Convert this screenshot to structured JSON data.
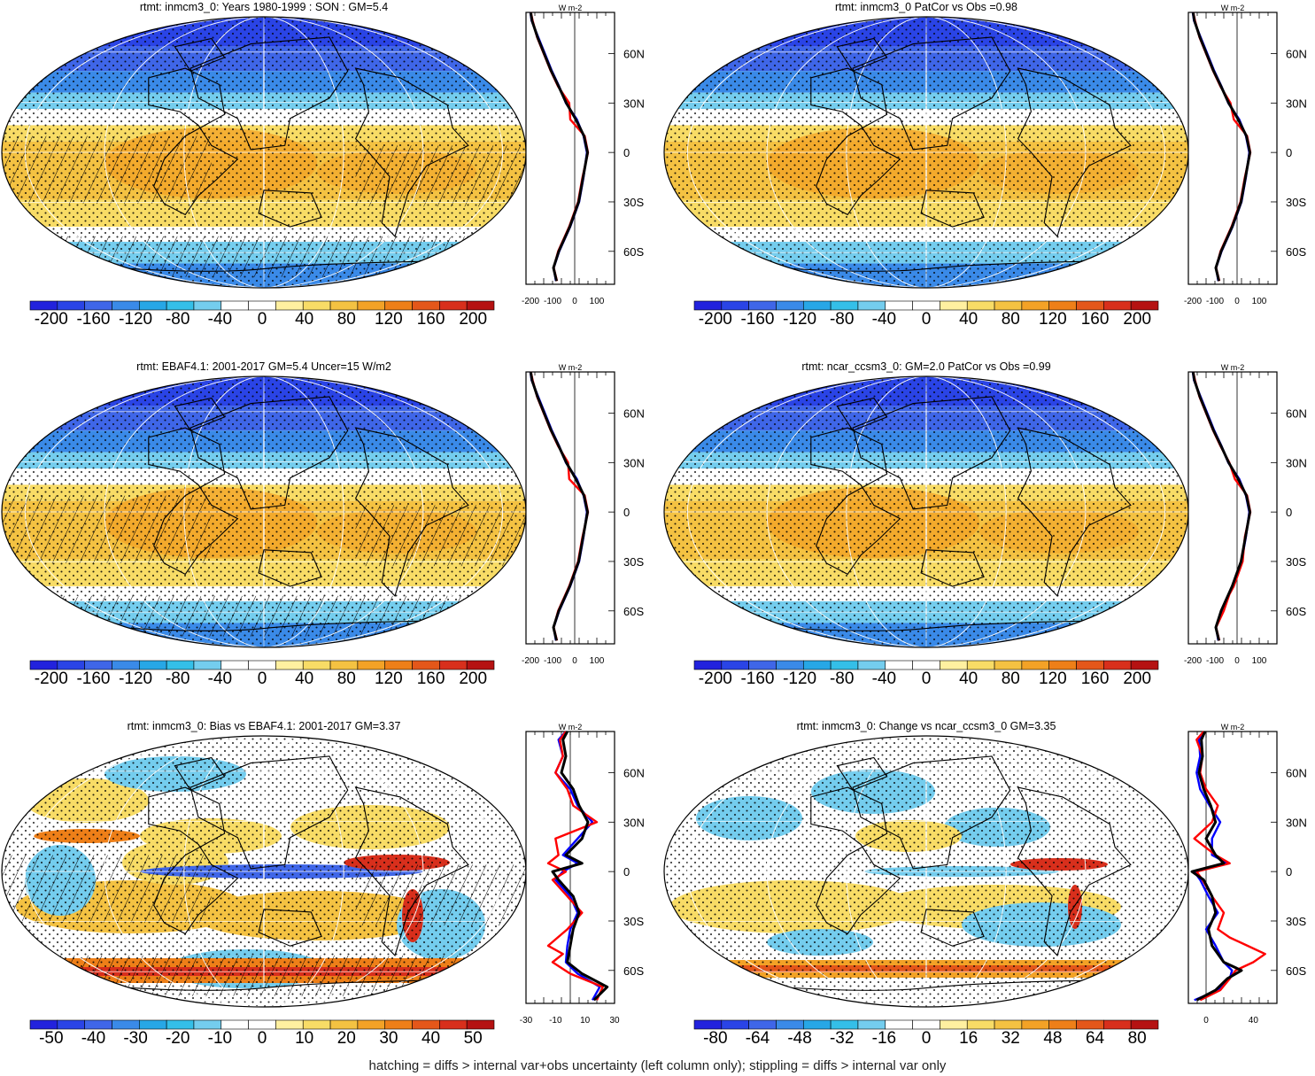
{
  "footer_note": "hatching = diffs > internal var+obs uncertainty (left column only); stippling = diffs > internal var only",
  "colors": {
    "ocean_fill": "#f2c440",
    "land_outline": "#000000",
    "model_line": "#0000ff",
    "obs_line": "#ff0000",
    "ref_line": "#000000"
  },
  "icons": {
    "stippling": "dot-pattern",
    "hatching": "diagonal-line-pattern"
  },
  "chart_data": [
    {
      "type": "heatmap",
      "panel": "row1-left",
      "title": "rtmt: inmcm3_0: Years 1980-1999 : SON : GM=5.4",
      "scale": "full",
      "colorbar_labels": [
        "-200",
        "-160",
        "-120",
        "-80",
        "-40",
        "0",
        "40",
        "80",
        "120",
        "160",
        "200"
      ],
      "colorbar_range": [
        -220,
        220
      ],
      "zonal_mean": {
        "unit_label": "W m-2",
        "x_ticks": [
          "-200",
          "-100",
          "0",
          "100"
        ],
        "x_range": [
          -220,
          180
        ],
        "lat_ticks": [
          "60N",
          "30N",
          "0",
          "30S",
          "60S"
        ],
        "lat_range": [
          -80,
          85
        ],
        "series": [
          {
            "name": "model",
            "lat": [
              -78,
              -70,
              -60,
              -45,
              -30,
              -15,
              0,
              10,
              20,
              30,
              40,
              50,
              60,
              70,
              80,
              85
            ],
            "values": [
              -85,
              -95,
              -70,
              -20,
              20,
              40,
              55,
              40,
              10,
              -40,
              -70,
              -105,
              -135,
              -165,
              -195,
              -200
            ]
          },
          {
            "name": "obs",
            "lat": [
              -78,
              -70,
              -60,
              -45,
              -30,
              -15,
              0,
              10,
              20,
              30,
              40,
              50,
              60,
              70,
              80,
              85
            ],
            "values": [
              -80,
              -95,
              -75,
              -25,
              15,
              35,
              60,
              45,
              -20,
              -25,
              -75,
              -110,
              -140,
              -170,
              -190,
              -198
            ]
          },
          {
            "name": "reference",
            "lat": [
              -78,
              -70,
              -60,
              -45,
              -30,
              -15,
              0,
              10,
              20,
              30,
              40,
              50,
              60,
              70,
              80,
              85
            ],
            "values": [
              -82,
              -96,
              -72,
              -22,
              18,
              38,
              58,
              42,
              5,
              -38,
              -72,
              -108,
              -138,
              -168,
              -193,
              -199
            ]
          }
        ]
      }
    },
    {
      "type": "heatmap",
      "panel": "row1-right",
      "title": "rtmt: inmcm3_0 PatCor vs Obs =0.98",
      "scale": "full",
      "colorbar_labels": [
        "-200",
        "-160",
        "-120",
        "-80",
        "-40",
        "0",
        "40",
        "80",
        "120",
        "160",
        "200"
      ],
      "colorbar_range": [
        -220,
        220
      ],
      "zonal_mean": {
        "unit_label": "W m-2",
        "x_ticks": [
          "-200",
          "-100",
          "0",
          "100"
        ],
        "x_range": [
          -220,
          180
        ],
        "lat_ticks": [
          "60N",
          "30N",
          "0",
          "30S",
          "60S"
        ],
        "lat_range": [
          -80,
          85
        ],
        "series": [
          {
            "name": "model",
            "lat": [
              -78,
              -70,
              -60,
              -45,
              -30,
              -15,
              0,
              10,
              20,
              30,
              40,
              50,
              60,
              70,
              80,
              85
            ],
            "values": [
              -85,
              -95,
              -70,
              -20,
              20,
              40,
              55,
              40,
              10,
              -40,
              -70,
              -105,
              -135,
              -165,
              -195,
              -200
            ]
          },
          {
            "name": "obs",
            "lat": [
              -78,
              -70,
              -60,
              -45,
              -30,
              -15,
              0,
              10,
              20,
              30,
              40,
              50,
              60,
              70,
              80,
              85
            ],
            "values": [
              -80,
              -95,
              -75,
              -25,
              15,
              35,
              60,
              45,
              -15,
              -30,
              -75,
              -110,
              -140,
              -170,
              -190,
              -198
            ]
          },
          {
            "name": "reference",
            "lat": [
              -78,
              -70,
              -60,
              -45,
              -30,
              -15,
              0,
              10,
              20,
              30,
              40,
              50,
              60,
              70,
              80,
              85
            ],
            "values": [
              -82,
              -96,
              -72,
              -22,
              18,
              38,
              58,
              42,
              5,
              -38,
              -72,
              -108,
              -138,
              -168,
              -193,
              -199
            ]
          }
        ]
      }
    },
    {
      "type": "heatmap",
      "panel": "row2-left",
      "title": "rtmt: EBAF4.1: 2001-2017 GM=5.4 Uncer=15 W/m2",
      "scale": "full",
      "colorbar_labels": [
        "-200",
        "-160",
        "-120",
        "-80",
        "-40",
        "0",
        "40",
        "80",
        "120",
        "160",
        "200"
      ],
      "colorbar_range": [
        -220,
        220
      ],
      "zonal_mean": {
        "unit_label": "W m-2",
        "x_ticks": [
          "-200",
          "-100",
          "0",
          "100"
        ],
        "x_range": [
          -220,
          180
        ],
        "lat_ticks": [
          "60N",
          "30N",
          "0",
          "30S",
          "60S"
        ],
        "lat_range": [
          -80,
          85
        ],
        "series": [
          {
            "name": "model",
            "lat": [
              -78,
              -70,
              -60,
              -45,
              -30,
              -15,
              0,
              10,
              20,
              30,
              40,
              50,
              60,
              70,
              80,
              85
            ],
            "values": [
              -85,
              -95,
              -70,
              -20,
              20,
              40,
              55,
              40,
              10,
              -40,
              -70,
              -105,
              -135,
              -165,
              -195,
              -200
            ]
          },
          {
            "name": "obs",
            "lat": [
              -78,
              -70,
              -60,
              -45,
              -30,
              -15,
              0,
              10,
              20,
              30,
              40,
              50,
              60,
              70,
              80,
              85
            ],
            "values": [
              -80,
              -95,
              -75,
              -25,
              15,
              35,
              60,
              45,
              -25,
              -30,
              -75,
              -110,
              -140,
              -170,
              -190,
              -198
            ]
          },
          {
            "name": "reference",
            "lat": [
              -78,
              -70,
              -60,
              -45,
              -30,
              -15,
              0,
              10,
              20,
              30,
              40,
              50,
              60,
              70,
              80,
              85
            ],
            "values": [
              -82,
              -96,
              -72,
              -22,
              18,
              38,
              58,
              42,
              5,
              -38,
              -72,
              -108,
              -138,
              -168,
              -193,
              -199
            ]
          }
        ]
      }
    },
    {
      "type": "heatmap",
      "panel": "row2-right",
      "title": "rtmt: ncar_ccsm3_0: GM=2.0 PatCor vs Obs =0.99",
      "scale": "full",
      "colorbar_labels": [
        "-200",
        "-160",
        "-120",
        "-80",
        "-40",
        "0",
        "40",
        "80",
        "120",
        "160",
        "200"
      ],
      "colorbar_range": [
        -220,
        220
      ],
      "zonal_mean": {
        "unit_label": "W m-2",
        "x_ticks": [
          "-200",
          "-100",
          "0",
          "100"
        ],
        "x_range": [
          -220,
          180
        ],
        "lat_ticks": [
          "60N",
          "30N",
          "0",
          "30S",
          "60S"
        ],
        "lat_range": [
          -80,
          85
        ],
        "series": [
          {
            "name": "model",
            "lat": [
              -78,
              -70,
              -60,
              -45,
              -30,
              -15,
              0,
              10,
              20,
              30,
              40,
              50,
              60,
              70,
              80,
              85
            ],
            "values": [
              -85,
              -95,
              -70,
              -20,
              20,
              40,
              55,
              40,
              10,
              -40,
              -70,
              -105,
              -135,
              -165,
              -195,
              -200
            ]
          },
          {
            "name": "obs",
            "lat": [
              -78,
              -70,
              -60,
              -50,
              -45,
              -30,
              -15,
              0,
              10,
              20,
              30,
              40,
              50,
              60,
              70,
              80,
              85
            ],
            "values": [
              -80,
              -95,
              -60,
              -35,
              -15,
              25,
              35,
              60,
              45,
              -10,
              -35,
              -75,
              -110,
              -140,
              -170,
              -190,
              -198
            ]
          },
          {
            "name": "reference",
            "lat": [
              -78,
              -70,
              -60,
              -45,
              -30,
              -15,
              0,
              10,
              20,
              30,
              40,
              50,
              60,
              70,
              80,
              85
            ],
            "values": [
              -82,
              -96,
              -72,
              -22,
              18,
              38,
              58,
              42,
              5,
              -38,
              -72,
              -108,
              -138,
              -168,
              -193,
              -199
            ]
          }
        ]
      }
    },
    {
      "type": "heatmap",
      "panel": "row3-left",
      "title": "rtmt: inmcm3_0: Bias vs EBAF4.1: 2001-2017  GM=3.37",
      "scale": "bias",
      "colorbar_labels": [
        "-50",
        "-40",
        "-30",
        "-20",
        "-10",
        "0",
        "10",
        "20",
        "30",
        "40",
        "50"
      ],
      "colorbar_range": [
        -55,
        55
      ],
      "zonal_mean": {
        "unit_label": "W m-2",
        "x_ticks": [
          "-30",
          "-10",
          "10",
          "30"
        ],
        "x_range": [
          -30,
          30
        ],
        "lat_ticks": [
          "60N",
          "30N",
          "0",
          "30S",
          "60S"
        ],
        "lat_range": [
          -80,
          85
        ],
        "series": [
          {
            "name": "model",
            "lat": [
              -78,
              -70,
              -62,
              -55,
              -45,
              -35,
              -25,
              -15,
              -5,
              0,
              5,
              10,
              20,
              30,
              40,
              50,
              60,
              70,
              80,
              85
            ],
            "values": [
              15,
              20,
              5,
              -3,
              -2,
              0,
              5,
              0,
              -10,
              -5,
              5,
              -5,
              5,
              15,
              5,
              0,
              -10,
              -5,
              -8,
              -3
            ]
          },
          {
            "name": "obs",
            "lat": [
              -78,
              -70,
              -62,
              -55,
              -50,
              -45,
              -35,
              -25,
              -15,
              -5,
              0,
              5,
              10,
              20,
              30,
              40,
              50,
              60,
              70,
              80,
              85
            ],
            "values": [
              18,
              22,
              0,
              -12,
              -5,
              -15,
              -2,
              8,
              -2,
              -12,
              -3,
              -15,
              -8,
              -10,
              18,
              2,
              -2,
              -10,
              -5,
              -7,
              -3
            ]
          },
          {
            "name": "reference",
            "lat": [
              -78,
              -70,
              -62,
              -55,
              -45,
              -35,
              -25,
              -15,
              -5,
              0,
              5,
              10,
              20,
              30,
              40,
              50,
              60,
              70,
              80,
              85
            ],
            "values": [
              16,
              25,
              8,
              -2,
              0,
              2,
              6,
              2,
              -8,
              -12,
              8,
              -3,
              8,
              12,
              6,
              2,
              -6,
              -3,
              -5,
              -2
            ]
          }
        ]
      }
    },
    {
      "type": "heatmap",
      "panel": "row3-right",
      "title": "rtmt: inmcm3_0: Change vs ncar_ccsm3_0 GM=3.35",
      "scale": "change",
      "colorbar_labels": [
        "-80",
        "-64",
        "-48",
        "-32",
        "-16",
        "0",
        "16",
        "32",
        "48",
        "64",
        "80"
      ],
      "colorbar_range": [
        -88,
        88
      ],
      "zonal_mean": {
        "unit_label": "W m-2",
        "x_ticks": [
          "0",
          "40"
        ],
        "x_range": [
          -15,
          60
        ],
        "lat_ticks": [
          "60N",
          "30N",
          "0",
          "30S",
          "60S"
        ],
        "lat_range": [
          -80,
          85
        ],
        "series": [
          {
            "name": "model",
            "lat": [
              -78,
              -72,
              -65,
              -60,
              -55,
              -45,
              -35,
              -25,
              -15,
              -5,
              0,
              5,
              10,
              20,
              30,
              40,
              50,
              60,
              70,
              80,
              85
            ],
            "values": [
              -10,
              10,
              20,
              22,
              15,
              8,
              0,
              10,
              2,
              -5,
              -10,
              18,
              5,
              5,
              12,
              3,
              -5,
              -8,
              -5,
              -6,
              -2
            ]
          },
          {
            "name": "obs",
            "lat": [
              -78,
              -72,
              -65,
              -60,
              -55,
              -50,
              -45,
              -40,
              -35,
              -25,
              -15,
              -5,
              0,
              5,
              10,
              20,
              30,
              40,
              50,
              60,
              70,
              80,
              85
            ],
            "values": [
              -5,
              12,
              20,
              25,
              40,
              50,
              35,
              20,
              10,
              15,
              5,
              -3,
              -8,
              20,
              8,
              -10,
              5,
              10,
              0,
              -5,
              -3,
              -8,
              -2
            ]
          },
          {
            "name": "reference",
            "lat": [
              -78,
              -72,
              -65,
              -60,
              -55,
              -45,
              -35,
              -25,
              -15,
              -5,
              0,
              5,
              10,
              20,
              30,
              40,
              50,
              60,
              70,
              80,
              85
            ],
            "values": [
              -8,
              8,
              18,
              30,
              15,
              5,
              2,
              8,
              5,
              -2,
              -12,
              15,
              8,
              0,
              8,
              4,
              -2,
              -6,
              -3,
              -4,
              -1
            ]
          }
        ]
      }
    }
  ]
}
